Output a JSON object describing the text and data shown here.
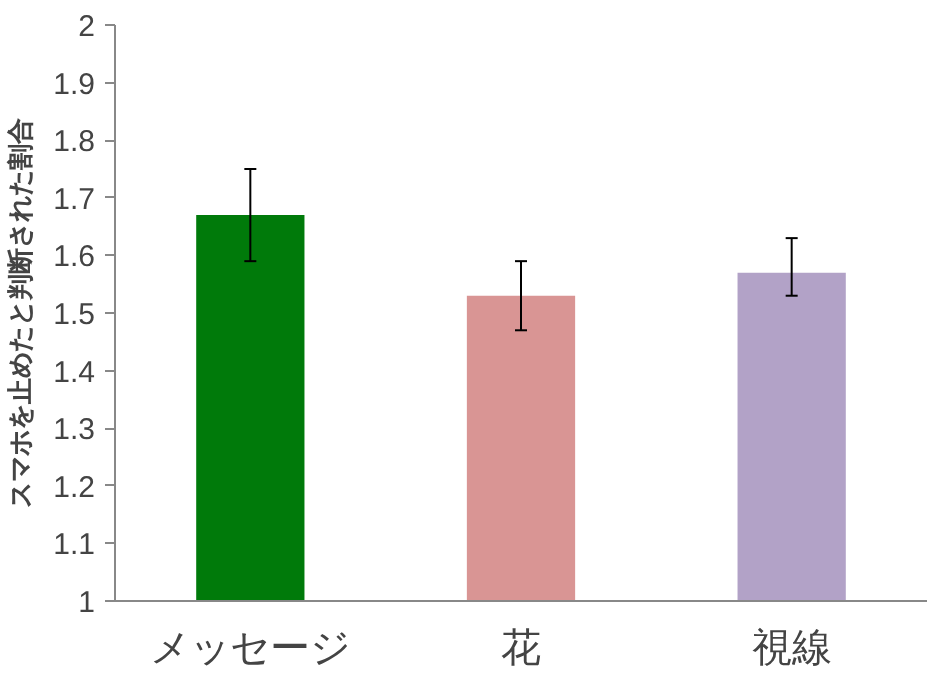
{
  "chart_data": {
    "type": "bar",
    "ylabel": "スマホを止めたと判断された割合",
    "categories": [
      "メッセージ",
      "花",
      "視線"
    ],
    "values": [
      1.67,
      1.53,
      1.57
    ],
    "colors": [
      "#007a0a",
      "#d99594",
      "#b2a2c7"
    ],
    "errors": [
      [
        1.59,
        1.75
      ],
      [
        1.47,
        1.59
      ],
      [
        1.53,
        1.63
      ]
    ],
    "ylim": [
      1,
      2
    ],
    "yticks": [
      1,
      1.1,
      1.2,
      1.3,
      1.4,
      1.5,
      1.6,
      1.7,
      1.8,
      1.9,
      2
    ],
    "grid": false
  }
}
